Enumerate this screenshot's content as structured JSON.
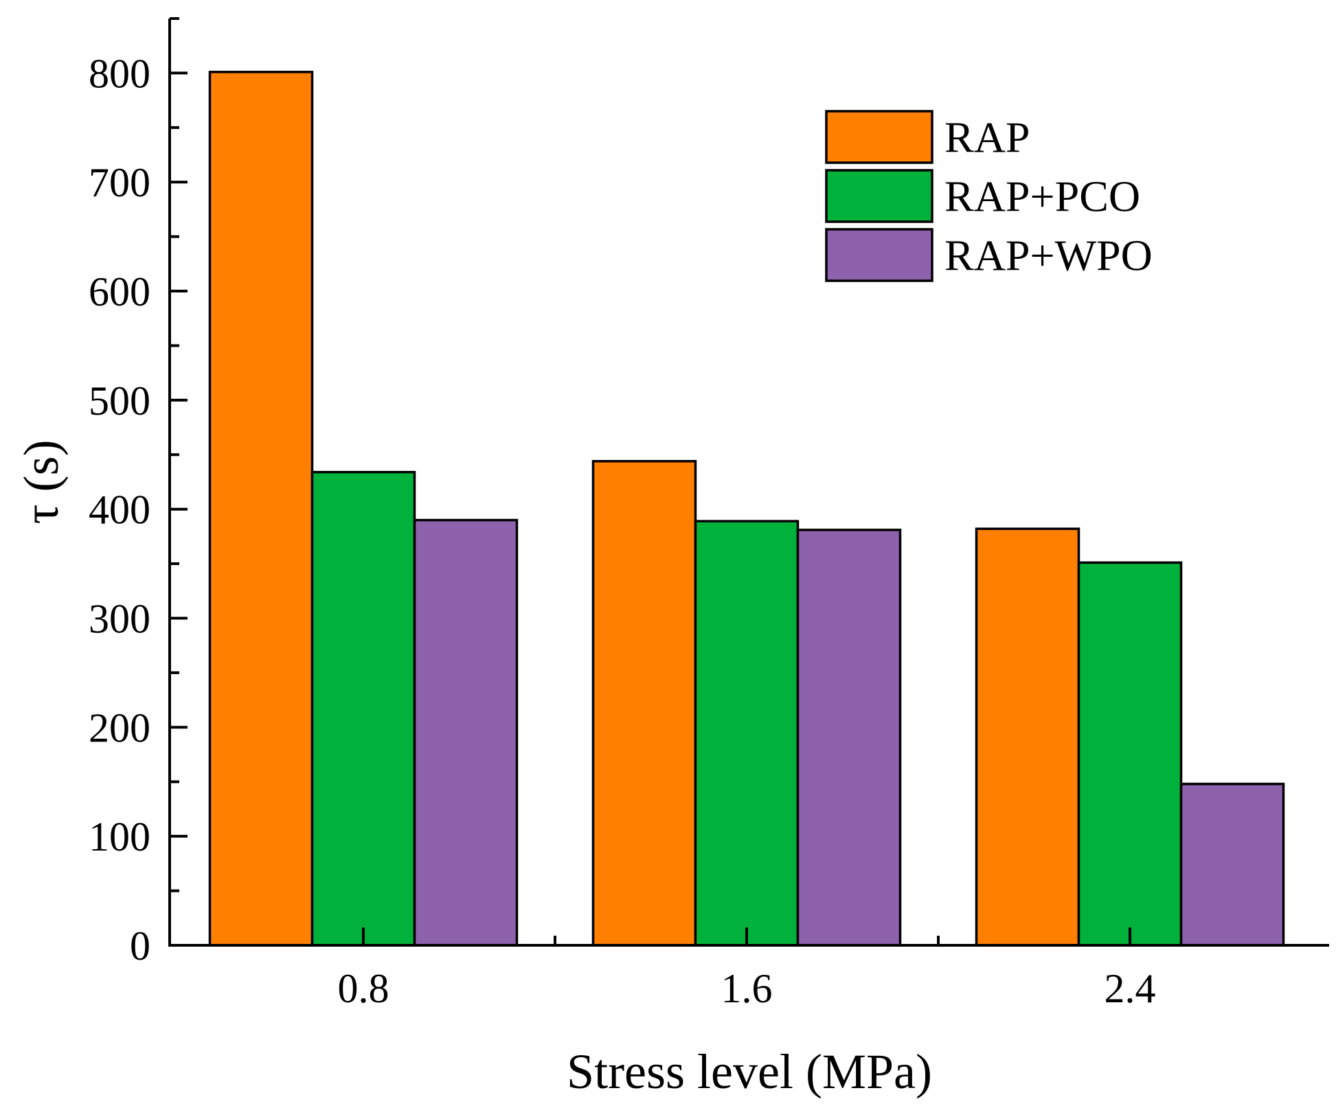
{
  "chart_data": {
    "type": "bar",
    "xlabel": "Stress level (MPa)",
    "ylabel": "τ (s)",
    "categories": [
      "0.8",
      "1.6",
      "2.4"
    ],
    "series": [
      {
        "name": "RAP",
        "color": "#ff8000",
        "values": [
          801,
          444,
          382
        ]
      },
      {
        "name": "RAP+PCO",
        "color": "#00b23b",
        "values": [
          434,
          389,
          351
        ]
      },
      {
        "name": "RAP+WPO",
        "color": "#8e61ad",
        "values": [
          390,
          381,
          148
        ]
      }
    ],
    "ylim": [
      0,
      850
    ],
    "yticks": [
      0,
      100,
      200,
      300,
      400,
      500,
      600,
      700,
      800
    ],
    "grid": false,
    "legend_position": "top-right"
  }
}
